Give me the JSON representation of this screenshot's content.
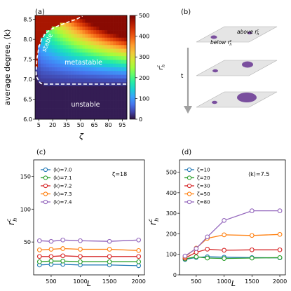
{
  "chart_data": [
    {
      "type": "heatmap",
      "panel_label": "(a)",
      "xlabel": "ζ",
      "ylabel": "average degree, ⟨k⟩",
      "x_ticks": [
        "5",
        "20",
        "35",
        "50",
        "65",
        "80",
        "95"
      ],
      "y_ticks": [
        "6.0",
        "6.5",
        "7.0",
        "7.5",
        "8.0",
        "8.5"
      ],
      "xlim": [
        1,
        100
      ],
      "ylim": [
        6.0,
        8.6
      ],
      "colorbar": {
        "label": "r_h^c",
        "ticks": [
          "0",
          "100",
          "200",
          "300",
          "400",
          "500"
        ],
        "range": [
          0,
          500
        ],
        "colormap": [
          "#30123b",
          "#4145ab",
          "#4675ed",
          "#39a2fc",
          "#1bcfd4",
          "#24eca6",
          "#61fc6c",
          "#a4fc3b",
          "#d1e834",
          "#f3c63a",
          "#fe9b2d",
          "#f36315",
          "#d93806",
          "#b11901",
          "#7a0402"
        ]
      },
      "region_labels": [
        "stable",
        "metastable",
        "unstable"
      ],
      "boundaries": {
        "stable_metastable": {
          "zeta": [
            2,
            3,
            5,
            8,
            12,
            18,
            25,
            35,
            45,
            52
          ],
          "k": [
            7.1,
            7.5,
            7.8,
            8.0,
            8.15,
            8.25,
            8.33,
            8.42,
            8.5,
            8.58
          ]
        },
        "metastable_unstable": {
          "zeta": [
            2,
            3,
            5,
            7,
            9,
            100
          ],
          "k": [
            7.2,
            7.05,
            6.96,
            6.9,
            6.88,
            6.88
          ]
        }
      }
    },
    {
      "type": "diagram",
      "panel_label": "(b)",
      "labels": {
        "above": "above r",
        "below": "below r",
        "sup": "c",
        "sub": "h",
        "time": "t"
      },
      "purple": "#7a4f9e",
      "plane": "#e5e5e5"
    },
    {
      "type": "line",
      "panel_label": "(c)",
      "xlabel": "L",
      "ylabel": "r",
      "ylabel_sup": "c",
      "ylabel_sub": "h",
      "annotation": "ζ=18",
      "x": [
        300,
        500,
        700,
        1000,
        1500,
        2000
      ],
      "x_ticks": [
        500,
        1000,
        1500,
        2000
      ],
      "y_ticks": [
        50,
        100,
        150
      ],
      "xlim": [
        200,
        2100
      ],
      "ylim": [
        0,
        175
      ],
      "series": [
        {
          "name": "⟨k⟩=7.0",
          "color": "#1f77b4",
          "values": [
            15,
            16,
            16,
            15,
            15,
            14
          ]
        },
        {
          "name": "⟨k⟩=7.1",
          "color": "#2ca02c",
          "values": [
            20,
            21,
            21,
            20,
            20,
            20
          ]
        },
        {
          "name": "⟨k⟩=7.2",
          "color": "#d62728",
          "values": [
            28,
            28,
            29,
            28,
            28,
            28
          ]
        },
        {
          "name": "⟨k⟩=7.3",
          "color": "#ff7f0e",
          "values": [
            38,
            39,
            40,
            39,
            39,
            37
          ]
        },
        {
          "name": "⟨k⟩=7.4",
          "color": "#9467bd",
          "values": [
            52,
            51,
            53,
            52,
            51,
            53
          ]
        }
      ]
    },
    {
      "type": "line",
      "panel_label": "(d)",
      "xlabel": "L",
      "ylabel": "r",
      "ylabel_sup": "c",
      "ylabel_sub": "h",
      "annotation": "⟨k⟩=7.5",
      "x": [
        300,
        500,
        700,
        1000,
        1500,
        2000
      ],
      "x_ticks": [
        500,
        1000,
        1500,
        2000
      ],
      "y_ticks": [
        0,
        100,
        200,
        300,
        400,
        500
      ],
      "xlim": [
        200,
        2100
      ],
      "ylim": [
        0,
        560
      ],
      "series": [
        {
          "name": "ζ=10",
          "color": "#1f77b4",
          "values": [
            75,
            85,
            88,
            86,
            84,
            83
          ]
        },
        {
          "name": "ζ=20",
          "color": "#2ca02c",
          "values": [
            78,
            88,
            82,
            80,
            82,
            84
          ]
        },
        {
          "name": "ζ=30",
          "color": "#d62728",
          "values": [
            82,
            110,
            125,
            120,
            122,
            122
          ]
        },
        {
          "name": "ζ=50",
          "color": "#ff7f0e",
          "values": [
            88,
            130,
            178,
            195,
            192,
            197
          ]
        },
        {
          "name": "ζ=80",
          "color": "#9467bd",
          "values": [
            92,
            128,
            185,
            265,
            312,
            312
          ]
        }
      ]
    }
  ]
}
